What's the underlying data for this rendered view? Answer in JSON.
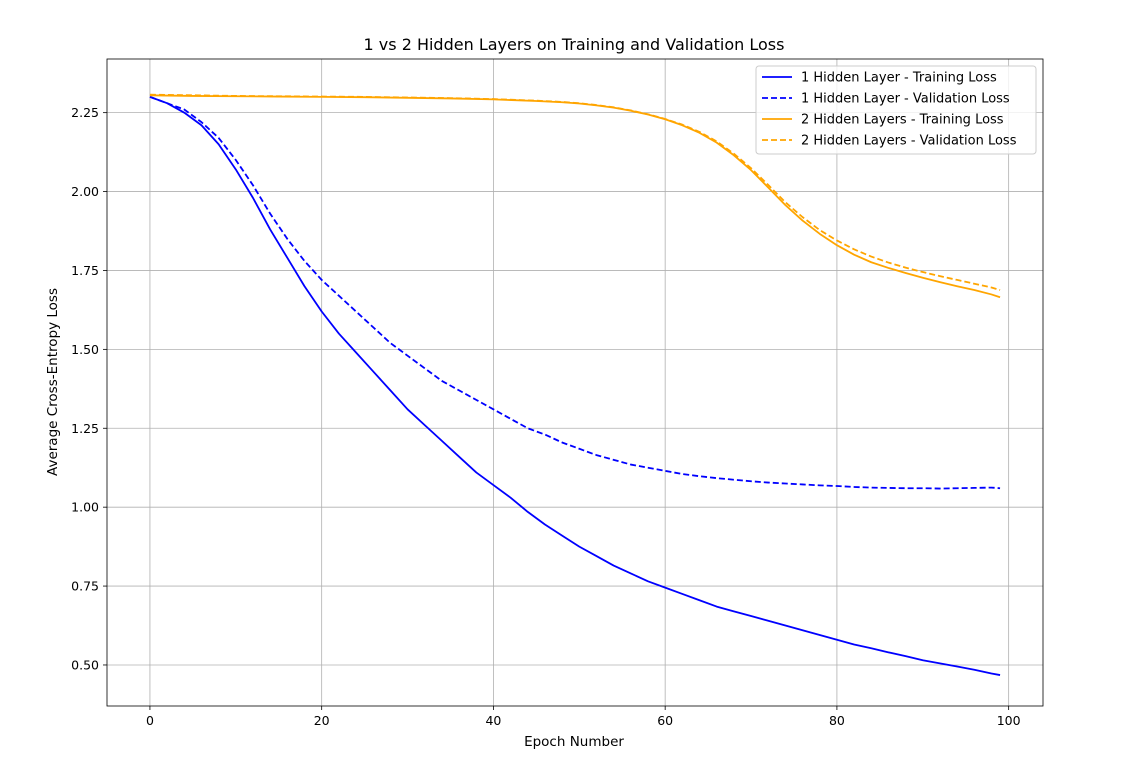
{
  "chart_data": {
    "type": "line",
    "title": "1 vs 2 Hidden Layers on Training and Validation Loss",
    "xlabel": "Epoch Number",
    "ylabel": "Average Cross-Entropy Loss",
    "xlim": [
      -5,
      104
    ],
    "ylim": [
      0.37,
      2.42
    ],
    "xticks": [
      0,
      20,
      40,
      60,
      80,
      100
    ],
    "yticks": [
      0.5,
      0.75,
      1.0,
      1.25,
      1.5,
      1.75,
      2.0,
      2.25
    ],
    "ytick_labels": [
      "0.50",
      "0.75",
      "1.00",
      "1.25",
      "1.50",
      "1.75",
      "2.00",
      "2.25"
    ],
    "xtick_labels": [
      "0",
      "20",
      "40",
      "60",
      "80",
      "100"
    ],
    "grid": true,
    "legend_position": "top-right",
    "series": [
      {
        "name": "1 Hidden Layer - Training Loss",
        "color": "#0000ff",
        "dash": "solid",
        "x": [
          0,
          2,
          4,
          6,
          8,
          10,
          12,
          14,
          16,
          18,
          20,
          22,
          24,
          26,
          28,
          30,
          32,
          34,
          36,
          38,
          40,
          42,
          44,
          46,
          48,
          50,
          52,
          54,
          56,
          58,
          60,
          62,
          64,
          66,
          68,
          70,
          72,
          74,
          76,
          78,
          80,
          82,
          84,
          86,
          88,
          90,
          92,
          94,
          96,
          98,
          99
        ],
        "y": [
          2.3,
          2.28,
          2.25,
          2.21,
          2.15,
          2.07,
          1.98,
          1.88,
          1.79,
          1.7,
          1.62,
          1.55,
          1.49,
          1.43,
          1.37,
          1.31,
          1.26,
          1.21,
          1.16,
          1.11,
          1.07,
          1.03,
          0.985,
          0.945,
          0.91,
          0.875,
          0.845,
          0.815,
          0.79,
          0.765,
          0.745,
          0.725,
          0.705,
          0.685,
          0.67,
          0.655,
          0.64,
          0.625,
          0.61,
          0.595,
          0.58,
          0.565,
          0.553,
          0.54,
          0.528,
          0.515,
          0.505,
          0.495,
          0.485,
          0.473,
          0.468
        ]
      },
      {
        "name": "1 Hidden Layer - Validation Loss",
        "color": "#0000ff",
        "dash": "dashed",
        "x": [
          0,
          2,
          4,
          6,
          8,
          10,
          12,
          14,
          16,
          18,
          20,
          22,
          24,
          26,
          28,
          30,
          32,
          34,
          36,
          38,
          40,
          42,
          44,
          46,
          48,
          50,
          52,
          54,
          56,
          58,
          60,
          62,
          64,
          66,
          68,
          70,
          72,
          74,
          76,
          78,
          80,
          82,
          84,
          86,
          88,
          90,
          92,
          94,
          96,
          98,
          99
        ],
        "y": [
          2.3,
          2.28,
          2.26,
          2.22,
          2.17,
          2.1,
          2.02,
          1.93,
          1.85,
          1.78,
          1.72,
          1.67,
          1.62,
          1.57,
          1.52,
          1.48,
          1.44,
          1.4,
          1.37,
          1.34,
          1.31,
          1.28,
          1.25,
          1.23,
          1.205,
          1.185,
          1.165,
          1.15,
          1.135,
          1.125,
          1.115,
          1.105,
          1.098,
          1.092,
          1.087,
          1.082,
          1.078,
          1.075,
          1.072,
          1.069,
          1.067,
          1.064,
          1.062,
          1.061,
          1.06,
          1.06,
          1.059,
          1.06,
          1.061,
          1.062,
          1.06
        ]
      },
      {
        "name": "2 Hidden Layers - Training Loss",
        "color": "#ffa500",
        "dash": "solid",
        "x": [
          0,
          5,
          10,
          15,
          20,
          25,
          30,
          35,
          40,
          45,
          48,
          50,
          52,
          54,
          56,
          58,
          60,
          62,
          64,
          66,
          68,
          70,
          72,
          74,
          76,
          78,
          80,
          82,
          84,
          86,
          88,
          90,
          92,
          94,
          96,
          98,
          99
        ],
        "y": [
          2.305,
          2.303,
          2.302,
          2.301,
          2.3,
          2.299,
          2.297,
          2.295,
          2.292,
          2.287,
          2.283,
          2.279,
          2.273,
          2.266,
          2.256,
          2.244,
          2.229,
          2.21,
          2.186,
          2.155,
          2.115,
          2.068,
          2.013,
          1.957,
          1.908,
          1.866,
          1.83,
          1.8,
          1.776,
          1.758,
          1.742,
          1.727,
          1.713,
          1.7,
          1.688,
          1.674,
          1.665
        ]
      },
      {
        "name": "2 Hidden Layers - Validation Loss",
        "color": "#ffa500",
        "dash": "dashed",
        "x": [
          0,
          5,
          10,
          15,
          20,
          25,
          30,
          35,
          40,
          45,
          48,
          50,
          52,
          54,
          56,
          58,
          60,
          62,
          64,
          66,
          68,
          70,
          72,
          74,
          76,
          78,
          80,
          82,
          84,
          86,
          88,
          90,
          92,
          94,
          96,
          98,
          99
        ],
        "y": [
          2.307,
          2.305,
          2.303,
          2.302,
          2.301,
          2.3,
          2.298,
          2.296,
          2.293,
          2.288,
          2.284,
          2.28,
          2.274,
          2.267,
          2.257,
          2.245,
          2.23,
          2.212,
          2.189,
          2.159,
          2.12,
          2.074,
          2.021,
          1.966,
          1.919,
          1.878,
          1.845,
          1.817,
          1.794,
          1.775,
          1.759,
          1.745,
          1.732,
          1.72,
          1.708,
          1.696,
          1.688
        ]
      }
    ]
  }
}
